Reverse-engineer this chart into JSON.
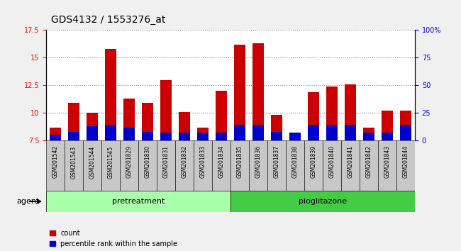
{
  "title": "GDS4132 / 1553276_at",
  "samples": [
    "GSM201542",
    "GSM201543",
    "GSM201544",
    "GSM201545",
    "GSM201829",
    "GSM201830",
    "GSM201831",
    "GSM201832",
    "GSM201833",
    "GSM201834",
    "GSM201835",
    "GSM201836",
    "GSM201837",
    "GSM201838",
    "GSM201839",
    "GSM201840",
    "GSM201841",
    "GSM201842",
    "GSM201843",
    "GSM201844"
  ],
  "count_values": [
    8.7,
    10.9,
    10.0,
    15.8,
    11.3,
    10.9,
    13.0,
    10.1,
    8.7,
    12.0,
    16.2,
    16.3,
    9.8,
    8.1,
    11.9,
    12.4,
    12.6,
    8.7,
    10.2,
    10.2
  ],
  "percentile_values": [
    5,
    8,
    13,
    14,
    12,
    8,
    7,
    7,
    7,
    7,
    14,
    14,
    8,
    7,
    14,
    14,
    14,
    7,
    7,
    14
  ],
  "baseline": 7.5,
  "ylim_left": [
    7.5,
    17.5
  ],
  "ylim_right": [
    0,
    100
  ],
  "yticks_left": [
    7.5,
    10.0,
    12.5,
    15.0,
    17.5
  ],
  "ytick_labels_left": [
    "7.5",
    "10",
    "12.5",
    "15",
    "17.5"
  ],
  "yticks_right": [
    0,
    25,
    50,
    75,
    100
  ],
  "ytick_labels_right": [
    "0",
    "25",
    "50",
    "75",
    "100%"
  ],
  "groups": [
    {
      "label": "pretreatment",
      "start": 0,
      "end": 10,
      "color": "#aaffaa"
    },
    {
      "label": "pioglitazone",
      "start": 10,
      "end": 20,
      "color": "#44cc44"
    }
  ],
  "bar_color_count": "#cc0000",
  "bar_color_pct": "#0000cc",
  "bar_width": 0.6,
  "fig_bg": "#f0f0f0",
  "plot_bg": "#ffffff",
  "agent_label": "agent",
  "legend_count": "count",
  "legend_pct": "percentile rank within the sample",
  "title_fontsize": 10,
  "tick_label_fontsize": 7,
  "sample_fontsize": 5.5,
  "group_fontsize": 8
}
